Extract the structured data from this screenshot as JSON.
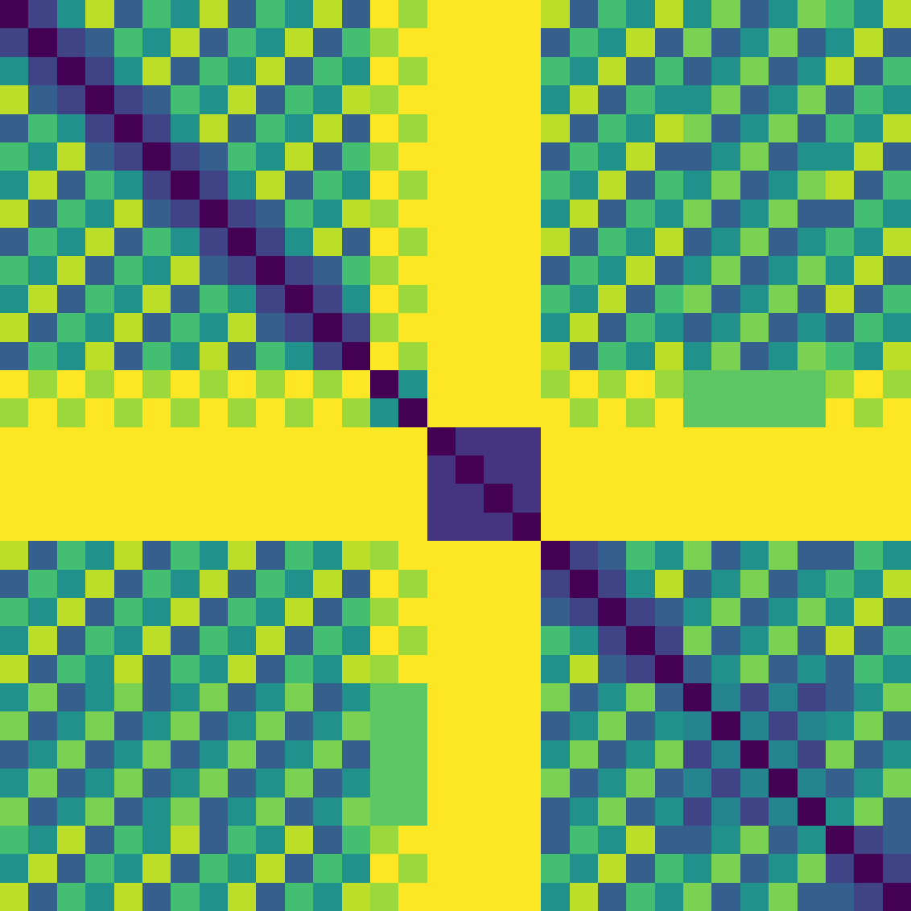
{
  "chart_data": {
    "type": "heatmap",
    "color": "Viridis",
    "tick_labels": false,
    "zlim": [
      0,
      1
    ],
    "cells": [
      [
        0,
        0.2,
        0.5,
        0.9,
        0.3,
        0.7,
        0.5,
        0.9,
        0.3,
        0.7,
        0.5,
        0.9,
        0.3,
        1,
        0.85,
        1,
        1,
        1,
        1,
        0.9,
        0.3,
        0.7,
        0.5,
        0.9,
        0.5,
        0.8,
        0.3,
        0.5,
        0.8,
        0.7,
        0.5,
        0.9
      ],
      [
        0.2,
        0,
        0.2,
        0.3,
        0.7,
        0.5,
        0.9,
        0.3,
        0.7,
        0.5,
        0.9,
        0.3,
        0.7,
        0.85,
        1,
        1,
        1,
        1,
        1,
        0.3,
        0.7,
        0.5,
        0.9,
        0.3,
        0.8,
        0.3,
        0.5,
        0.8,
        0.3,
        0.5,
        0.9,
        0.3
      ],
      [
        0.5,
        0.2,
        0,
        0.2,
        0.5,
        0.9,
        0.3,
        0.7,
        0.5,
        0.9,
        0.3,
        0.7,
        0.5,
        1,
        0.85,
        1,
        1,
        1,
        1,
        0.7,
        0.5,
        0.9,
        0.3,
        0.7,
        0.3,
        0.5,
        0.8,
        0.3,
        0.5,
        0.9,
        0.3,
        0.7
      ],
      [
        0.9,
        0.3,
        0.2,
        0,
        0.2,
        0.3,
        0.7,
        0.5,
        0.9,
        0.3,
        0.7,
        0.5,
        0.9,
        0.85,
        1,
        1,
        1,
        1,
        1,
        0.5,
        0.9,
        0.3,
        0.7,
        0.5,
        0.5,
        0.8,
        0.3,
        0.5,
        0.8,
        0.3,
        0.7,
        0.5
      ],
      [
        0.3,
        0.7,
        0.5,
        0.2,
        0,
        0.2,
        0.5,
        0.9,
        0.3,
        0.7,
        0.5,
        0.9,
        0.3,
        1,
        0.85,
        1,
        1,
        1,
        1,
        0.9,
        0.3,
        0.7,
        0.5,
        0.9,
        0.8,
        0.3,
        0.5,
        0.8,
        0.3,
        0.7,
        0.5,
        0.9
      ],
      [
        0.7,
        0.5,
        0.9,
        0.3,
        0.2,
        0,
        0.2,
        0.3,
        0.7,
        0.5,
        0.9,
        0.3,
        0.7,
        0.85,
        1,
        1,
        1,
        1,
        1,
        0.3,
        0.7,
        0.5,
        0.9,
        0.3,
        0.3,
        0.5,
        0.8,
        0.3,
        0.5,
        0.5,
        0.9,
        0.3
      ],
      [
        0.5,
        0.9,
        0.3,
        0.7,
        0.5,
        0.2,
        0,
        0.2,
        0.5,
        0.9,
        0.3,
        0.7,
        0.5,
        1,
        0.85,
        1,
        1,
        1,
        1,
        0.7,
        0.5,
        0.9,
        0.3,
        0.7,
        0.5,
        0.8,
        0.3,
        0.5,
        0.8,
        0.9,
        0.3,
        0.7
      ],
      [
        0.9,
        0.3,
        0.7,
        0.5,
        0.9,
        0.3,
        0.2,
        0,
        0.2,
        0.3,
        0.7,
        0.5,
        0.9,
        0.85,
        1,
        1,
        1,
        1,
        1,
        0.5,
        0.9,
        0.3,
        0.7,
        0.5,
        0.8,
        0.3,
        0.5,
        0.8,
        0.3,
        0.3,
        0.7,
        0.5
      ],
      [
        0.3,
        0.7,
        0.5,
        0.9,
        0.3,
        0.7,
        0.5,
        0.2,
        0,
        0.2,
        0.5,
        0.9,
        0.3,
        1,
        0.85,
        1,
        1,
        1,
        1,
        0.9,
        0.3,
        0.7,
        0.5,
        0.9,
        0.3,
        0.5,
        0.8,
        0.3,
        0.5,
        0.7,
        0.5,
        0.9
      ],
      [
        0.7,
        0.5,
        0.9,
        0.3,
        0.7,
        0.5,
        0.9,
        0.3,
        0.2,
        0,
        0.2,
        0.3,
        0.7,
        0.85,
        1,
        1,
        1,
        1,
        1,
        0.3,
        0.7,
        0.5,
        0.9,
        0.3,
        0.5,
        0.8,
        0.3,
        0.5,
        0.8,
        0.5,
        0.9,
        0.3
      ],
      [
        0.5,
        0.9,
        0.3,
        0.7,
        0.5,
        0.9,
        0.3,
        0.7,
        0.5,
        0.2,
        0,
        0.2,
        0.5,
        1,
        0.85,
        1,
        1,
        1,
        1,
        0.7,
        0.5,
        0.9,
        0.3,
        0.7,
        0.8,
        0.3,
        0.5,
        0.8,
        0.3,
        0.9,
        0.3,
        0.7
      ],
      [
        0.9,
        0.3,
        0.7,
        0.5,
        0.9,
        0.3,
        0.7,
        0.5,
        0.9,
        0.3,
        0.2,
        0,
        0.2,
        0.85,
        1,
        1,
        1,
        1,
        1,
        0.5,
        0.9,
        0.3,
        0.7,
        0.5,
        0.3,
        0.5,
        0.8,
        0.3,
        0.5,
        0.3,
        0.7,
        0.5
      ],
      [
        0.3,
        0.7,
        0.5,
        0.9,
        0.3,
        0.7,
        0.5,
        0.9,
        0.3,
        0.7,
        0.5,
        0.2,
        0,
        1,
        0.85,
        1,
        1,
        1,
        1,
        0.9,
        0.3,
        0.7,
        0.5,
        0.9,
        0.5,
        0.8,
        0.3,
        0.5,
        0.8,
        0.7,
        0.5,
        0.9
      ],
      [
        1,
        0.85,
        1,
        0.85,
        1,
        0.85,
        1,
        0.85,
        1,
        0.85,
        1,
        0.85,
        1,
        0,
        0.5,
        1,
        1,
        1,
        1,
        0.85,
        1,
        0.85,
        1,
        0.85,
        0.75,
        0.75,
        0.75,
        0.75,
        0.75,
        0.85,
        1,
        0.85
      ],
      [
        0.85,
        1,
        0.85,
        1,
        0.85,
        1,
        0.85,
        1,
        0.85,
        1,
        0.85,
        1,
        0.85,
        0.5,
        0,
        1,
        1,
        1,
        1,
        1,
        0.85,
        1,
        0.85,
        1,
        0.75,
        0.75,
        0.75,
        0.75,
        0.75,
        1,
        0.85,
        1
      ],
      [
        1,
        1,
        1,
        1,
        1,
        1,
        1,
        1,
        1,
        1,
        1,
        1,
        1,
        1,
        1,
        0,
        0.15,
        0.15,
        0.15,
        1,
        1,
        1,
        1,
        1,
        1,
        1,
        1,
        1,
        1,
        1,
        1,
        1
      ],
      [
        1,
        1,
        1,
        1,
        1,
        1,
        1,
        1,
        1,
        1,
        1,
        1,
        1,
        1,
        1,
        0.15,
        0,
        0.15,
        0.15,
        1,
        1,
        1,
        1,
        1,
        1,
        1,
        1,
        1,
        1,
        1,
        1,
        1
      ],
      [
        1,
        1,
        1,
        1,
        1,
        1,
        1,
        1,
        1,
        1,
        1,
        1,
        1,
        1,
        1,
        0.15,
        0.15,
        0,
        0.15,
        1,
        1,
        1,
        1,
        1,
        1,
        1,
        1,
        1,
        1,
        1,
        1,
        1
      ],
      [
        1,
        1,
        1,
        1,
        1,
        1,
        1,
        1,
        1,
        1,
        1,
        1,
        1,
        1,
        1,
        0.15,
        0.15,
        0.15,
        0,
        1,
        1,
        1,
        1,
        1,
        1,
        1,
        1,
        1,
        1,
        1,
        1,
        1
      ],
      [
        0.9,
        0.3,
        0.7,
        0.5,
        0.9,
        0.3,
        0.7,
        0.5,
        0.9,
        0.3,
        0.7,
        0.5,
        0.9,
        0.85,
        1,
        1,
        1,
        1,
        1,
        0,
        0.2,
        0.3,
        0.7,
        0.5,
        0.8,
        0.3,
        0.5,
        0.8,
        0.3,
        0.3,
        0.7,
        0.5
      ],
      [
        0.3,
        0.7,
        0.5,
        0.9,
        0.3,
        0.7,
        0.5,
        0.9,
        0.3,
        0.7,
        0.5,
        0.9,
        0.3,
        1,
        0.85,
        1,
        1,
        1,
        1,
        0.2,
        0,
        0.2,
        0.5,
        0.9,
        0.3,
        0.5,
        0.8,
        0.3,
        0.5,
        0.7,
        0.5,
        0.9
      ],
      [
        0.7,
        0.5,
        0.9,
        0.3,
        0.7,
        0.5,
        0.9,
        0.3,
        0.7,
        0.5,
        0.9,
        0.3,
        0.7,
        0.85,
        1,
        1,
        1,
        1,
        1,
        0.3,
        0.2,
        0,
        0.2,
        0.3,
        0.5,
        0.8,
        0.3,
        0.5,
        0.8,
        0.5,
        0.9,
        0.3
      ],
      [
        0.5,
        0.9,
        0.3,
        0.7,
        0.5,
        0.9,
        0.3,
        0.7,
        0.5,
        0.9,
        0.3,
        0.7,
        0.5,
        1,
        0.85,
        1,
        1,
        1,
        1,
        0.7,
        0.5,
        0.2,
        0,
        0.2,
        0.8,
        0.3,
        0.5,
        0.8,
        0.3,
        0.9,
        0.3,
        0.7
      ],
      [
        0.9,
        0.3,
        0.7,
        0.5,
        0.9,
        0.3,
        0.7,
        0.5,
        0.9,
        0.3,
        0.7,
        0.5,
        0.9,
        0.85,
        1,
        1,
        1,
        1,
        1,
        0.5,
        0.9,
        0.3,
        0.2,
        0,
        0.3,
        0.5,
        0.8,
        0.3,
        0.5,
        0.3,
        0.7,
        0.5
      ],
      [
        0.5,
        0.8,
        0.3,
        0.5,
        0.8,
        0.3,
        0.5,
        0.8,
        0.3,
        0.5,
        0.8,
        0.3,
        0.5,
        0.75,
        0.75,
        1,
        1,
        1,
        1,
        0.8,
        0.3,
        0.5,
        0.8,
        0.3,
        0,
        0.45,
        0.2,
        0.45,
        0.2,
        0.3,
        0.5,
        0.8
      ],
      [
        0.8,
        0.3,
        0.5,
        0.8,
        0.3,
        0.5,
        0.8,
        0.3,
        0.5,
        0.8,
        0.3,
        0.5,
        0.8,
        0.75,
        0.75,
        1,
        1,
        1,
        1,
        0.3,
        0.5,
        0.8,
        0.3,
        0.5,
        0.45,
        0,
        0.45,
        0.2,
        0.45,
        0.5,
        0.8,
        0.3
      ],
      [
        0.3,
        0.5,
        0.8,
        0.3,
        0.5,
        0.8,
        0.3,
        0.5,
        0.8,
        0.3,
        0.5,
        0.8,
        0.3,
        0.75,
        0.75,
        1,
        1,
        1,
        1,
        0.5,
        0.8,
        0.3,
        0.5,
        0.8,
        0.2,
        0.45,
        0,
        0.45,
        0.2,
        0.8,
        0.3,
        0.5
      ],
      [
        0.5,
        0.8,
        0.3,
        0.5,
        0.8,
        0.3,
        0.5,
        0.8,
        0.3,
        0.5,
        0.8,
        0.3,
        0.5,
        0.75,
        0.75,
        1,
        1,
        1,
        1,
        0.8,
        0.3,
        0.5,
        0.8,
        0.3,
        0.45,
        0.2,
        0.45,
        0,
        0.45,
        0.3,
        0.5,
        0.8
      ],
      [
        0.8,
        0.3,
        0.5,
        0.8,
        0.3,
        0.5,
        0.8,
        0.3,
        0.5,
        0.8,
        0.3,
        0.5,
        0.8,
        0.75,
        0.75,
        1,
        1,
        1,
        1,
        0.3,
        0.5,
        0.8,
        0.3,
        0.5,
        0.2,
        0.45,
        0.2,
        0.45,
        0,
        0.5,
        0.8,
        0.3
      ],
      [
        0.7,
        0.5,
        0.9,
        0.3,
        0.7,
        0.5,
        0.9,
        0.3,
        0.7,
        0.5,
        0.9,
        0.3,
        0.7,
        0.85,
        1,
        1,
        1,
        1,
        1,
        0.3,
        0.7,
        0.5,
        0.9,
        0.3,
        0.3,
        0.5,
        0.8,
        0.3,
        0.5,
        0,
        0.2,
        0.3
      ],
      [
        0.5,
        0.9,
        0.3,
        0.7,
        0.5,
        0.9,
        0.3,
        0.7,
        0.5,
        0.9,
        0.3,
        0.7,
        0.5,
        1,
        0.85,
        1,
        1,
        1,
        1,
        0.7,
        0.5,
        0.9,
        0.3,
        0.7,
        0.5,
        0.8,
        0.3,
        0.5,
        0.8,
        0.2,
        0,
        0.2
      ],
      [
        0.9,
        0.3,
        0.7,
        0.5,
        0.9,
        0.3,
        0.7,
        0.5,
        0.9,
        0.3,
        0.7,
        0.5,
        0.9,
        0.85,
        1,
        1,
        1,
        1,
        1,
        0.5,
        0.9,
        0.3,
        0.7,
        0.5,
        0.8,
        0.3,
        0.5,
        0.8,
        0.3,
        0.3,
        0.2,
        0
      ]
    ]
  }
}
